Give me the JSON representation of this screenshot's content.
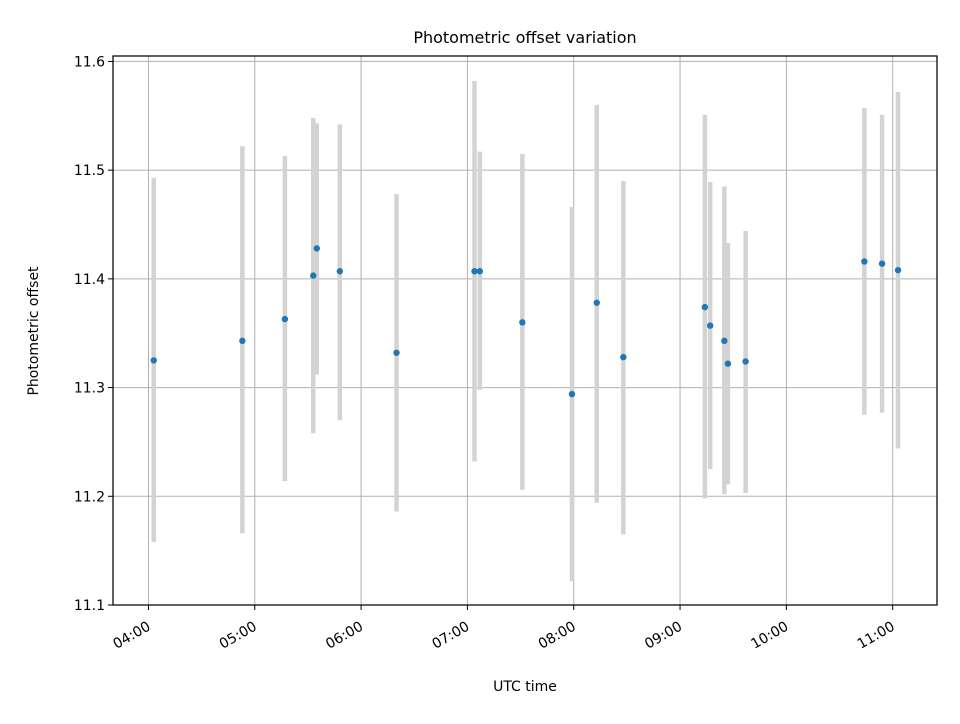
{
  "colors": {
    "marker": "#1f77b4",
    "errorbar": "#d3d3d3",
    "grid": "#b0b0b0",
    "axes": "#000000",
    "background": "#ffffff"
  },
  "chart_data": {
    "type": "scatter",
    "title": "Photometric offset variation",
    "xlabel": "UTC time",
    "ylabel": "Photometric offset",
    "grid": true,
    "xlim": [
      "03:40",
      "11:25"
    ],
    "ylim": [
      11.1,
      11.605
    ],
    "xticks": [
      "04:00",
      "05:00",
      "06:00",
      "07:00",
      "08:00",
      "09:00",
      "10:00",
      "11:00"
    ],
    "yticks": [
      "11.1",
      "11.2",
      "11.3",
      "11.4",
      "11.5",
      "11.6"
    ],
    "points": [
      {
        "x": "04:03",
        "y": 11.325,
        "ylow": 11.158,
        "yhigh": 11.493
      },
      {
        "x": "04:53",
        "y": 11.343,
        "ylow": 11.166,
        "yhigh": 11.522
      },
      {
        "x": "05:17",
        "y": 11.363,
        "ylow": 11.214,
        "yhigh": 11.513
      },
      {
        "x": "05:33",
        "y": 11.403,
        "ylow": 11.258,
        "yhigh": 11.548
      },
      {
        "x": "05:35",
        "y": 11.428,
        "ylow": 11.312,
        "yhigh": 11.543
      },
      {
        "x": "05:48",
        "y": 11.407,
        "ylow": 11.27,
        "yhigh": 11.542
      },
      {
        "x": "06:20",
        "y": 11.332,
        "ylow": 11.186,
        "yhigh": 11.478
      },
      {
        "x": "07:04",
        "y": 11.407,
        "ylow": 11.232,
        "yhigh": 11.582
      },
      {
        "x": "07:07",
        "y": 11.407,
        "ylow": 11.298,
        "yhigh": 11.517
      },
      {
        "x": "07:31",
        "y": 11.36,
        "ylow": 11.206,
        "yhigh": 11.515
      },
      {
        "x": "07:59",
        "y": 11.294,
        "ylow": 11.122,
        "yhigh": 11.466
      },
      {
        "x": "08:13",
        "y": 11.378,
        "ylow": 11.194,
        "yhigh": 11.56
      },
      {
        "x": "08:28",
        "y": 11.328,
        "ylow": 11.165,
        "yhigh": 11.49
      },
      {
        "x": "09:14",
        "y": 11.374,
        "ylow": 11.198,
        "yhigh": 11.551
      },
      {
        "x": "09:17",
        "y": 11.357,
        "ylow": 11.225,
        "yhigh": 11.489
      },
      {
        "x": "09:25",
        "y": 11.343,
        "ylow": 11.202,
        "yhigh": 11.485
      },
      {
        "x": "09:27",
        "y": 11.322,
        "ylow": 11.211,
        "yhigh": 11.433
      },
      {
        "x": "09:37",
        "y": 11.324,
        "ylow": 11.203,
        "yhigh": 11.444
      },
      {
        "x": "10:44",
        "y": 11.416,
        "ylow": 11.275,
        "yhigh": 11.557
      },
      {
        "x": "10:54",
        "y": 11.414,
        "ylow": 11.277,
        "yhigh": 11.551
      },
      {
        "x": "11:03",
        "y": 11.408,
        "ylow": 11.244,
        "yhigh": 11.572
      }
    ]
  }
}
